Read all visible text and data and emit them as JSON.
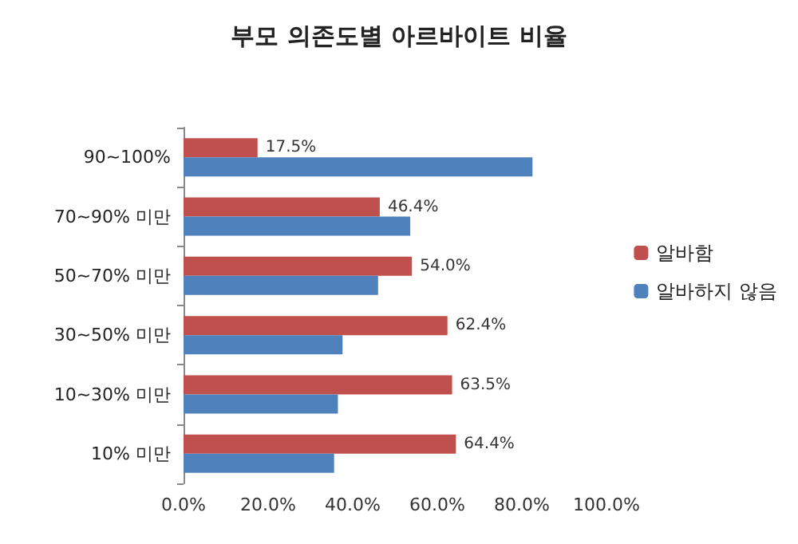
{
  "chart_data": {
    "type": "bar",
    "orientation": "horizontal",
    "title": "부모 의존도별 아르바이트 비율",
    "categories": [
      "90~100%",
      "70~90% 미만",
      "50~70% 미만",
      "30~50% 미만",
      "10~30% 미만",
      "10% 미만"
    ],
    "series": [
      {
        "name": "알바함",
        "color": "#c0504d",
        "values": [
          17.5,
          46.4,
          54.0,
          62.4,
          63.5,
          64.4
        ],
        "value_labels": [
          "17.5%",
          "46.4%",
          "54.0%",
          "62.4%",
          "63.5%",
          "64.4%"
        ]
      },
      {
        "name": "알바하지 않음",
        "color": "#4f81bd",
        "values": [
          82.5,
          53.6,
          46.0,
          37.6,
          36.5,
          35.6
        ]
      }
    ],
    "xlim": [
      0,
      100
    ],
    "xticks": [
      {
        "value": 0,
        "label": "0.0%"
      },
      {
        "value": 20,
        "label": "20.0%"
      },
      {
        "value": 40,
        "label": "40.0%"
      },
      {
        "value": 60,
        "label": "60.0%"
      },
      {
        "value": 80,
        "label": "80.0%"
      },
      {
        "value": 100,
        "label": "100.0%"
      }
    ],
    "grid": false,
    "legend": "right"
  }
}
